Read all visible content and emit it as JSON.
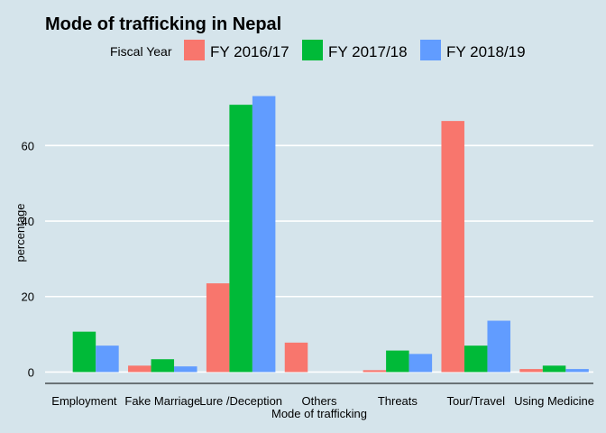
{
  "chart_data": {
    "type": "bar",
    "title": "Mode of trafficking in Nepal",
    "xlabel": "Mode of trafficking",
    "ylabel": "percentage",
    "legend_title": "Fiscal Year",
    "legend_position": "top",
    "grid": true,
    "ylim": [
      -3,
      78
    ],
    "yticks": [
      0,
      20,
      40,
      60
    ],
    "categories": [
      "Employment",
      "Fake Marriage",
      "Lure /Deception",
      "Others",
      "Threats",
      "Tour/Travel",
      "Using Medicine"
    ],
    "series": [
      {
        "name": "FY 2016/17",
        "color": "#f8766d",
        "values": [
          null,
          1.7,
          23.5,
          7.8,
          0.5,
          66.5,
          0.8
        ]
      },
      {
        "name": "FY 2017/18",
        "color": "#00ba38",
        "values": [
          10.7,
          3.4,
          70.8,
          null,
          5.7,
          7.0,
          1.7
        ]
      },
      {
        "name": "FY 2018/19",
        "color": "#619cff",
        "values": [
          7.0,
          1.5,
          73.1,
          null,
          4.8,
          13.6,
          0.8
        ]
      }
    ]
  }
}
